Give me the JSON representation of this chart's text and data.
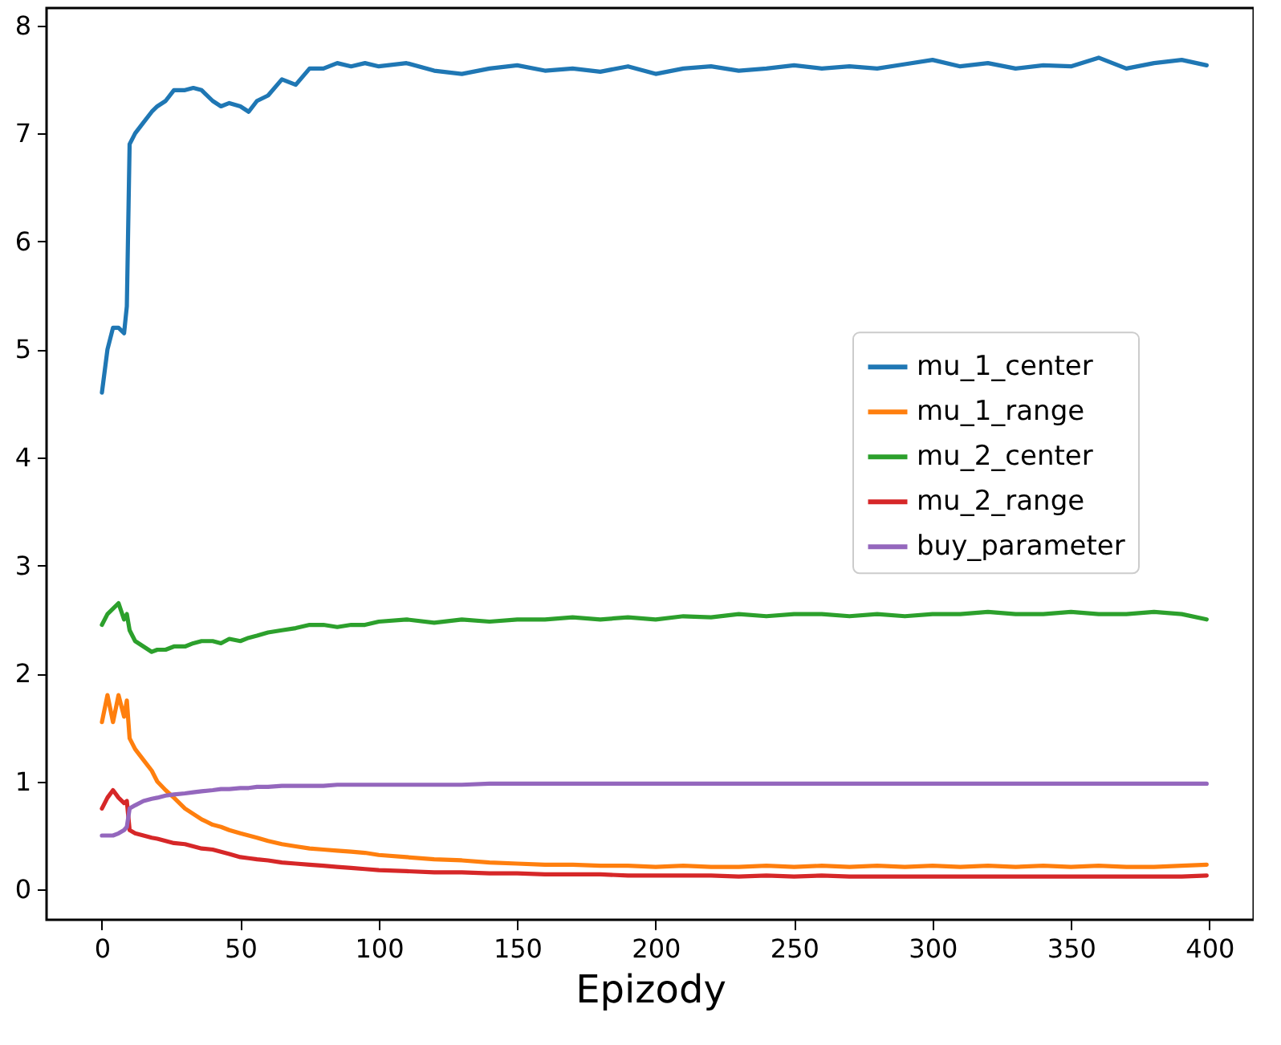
{
  "chart_data": {
    "type": "line",
    "xlabel": "Epizody",
    "x": [
      0,
      2,
      4,
      6,
      8,
      9,
      10,
      12,
      15,
      18,
      20,
      23,
      26,
      30,
      33,
      36,
      40,
      43,
      46,
      50,
      53,
      56,
      60,
      65,
      70,
      75,
      80,
      85,
      90,
      95,
      100,
      110,
      120,
      130,
      140,
      150,
      160,
      170,
      180,
      190,
      200,
      210,
      220,
      230,
      240,
      250,
      260,
      270,
      280,
      290,
      300,
      310,
      320,
      330,
      340,
      350,
      360,
      370,
      380,
      390,
      399
    ],
    "series": [
      {
        "name": "mu_1_center",
        "color": "#1f77b4",
        "values": [
          4.6,
          5.0,
          5.2,
          5.2,
          5.15,
          5.4,
          6.9,
          7.0,
          7.1,
          7.2,
          7.25,
          7.3,
          7.4,
          7.4,
          7.42,
          7.4,
          7.3,
          7.25,
          7.28,
          7.25,
          7.2,
          7.3,
          7.35,
          7.5,
          7.45,
          7.6,
          7.6,
          7.65,
          7.62,
          7.65,
          7.62,
          7.65,
          7.58,
          7.55,
          7.6,
          7.63,
          7.58,
          7.6,
          7.57,
          7.62,
          7.55,
          7.6,
          7.62,
          7.58,
          7.6,
          7.63,
          7.6,
          7.62,
          7.6,
          7.64,
          7.68,
          7.62,
          7.65,
          7.6,
          7.63,
          7.62,
          7.7,
          7.6,
          7.65,
          7.68,
          7.63
        ]
      },
      {
        "name": "mu_1_range",
        "color": "#ff7f0e",
        "values": [
          1.55,
          1.8,
          1.55,
          1.8,
          1.6,
          1.75,
          1.4,
          1.3,
          1.2,
          1.1,
          1.0,
          0.92,
          0.85,
          0.75,
          0.7,
          0.65,
          0.6,
          0.58,
          0.55,
          0.52,
          0.5,
          0.48,
          0.45,
          0.42,
          0.4,
          0.38,
          0.37,
          0.36,
          0.35,
          0.34,
          0.32,
          0.3,
          0.28,
          0.27,
          0.25,
          0.24,
          0.23,
          0.23,
          0.22,
          0.22,
          0.21,
          0.22,
          0.21,
          0.21,
          0.22,
          0.21,
          0.22,
          0.21,
          0.22,
          0.21,
          0.22,
          0.21,
          0.22,
          0.21,
          0.22,
          0.21,
          0.22,
          0.21,
          0.21,
          0.22,
          0.23
        ]
      },
      {
        "name": "mu_2_center",
        "color": "#2ca02c",
        "values": [
          2.45,
          2.55,
          2.6,
          2.65,
          2.5,
          2.55,
          2.4,
          2.3,
          2.25,
          2.2,
          2.22,
          2.22,
          2.25,
          2.25,
          2.28,
          2.3,
          2.3,
          2.28,
          2.32,
          2.3,
          2.33,
          2.35,
          2.38,
          2.4,
          2.42,
          2.45,
          2.45,
          2.43,
          2.45,
          2.45,
          2.48,
          2.5,
          2.47,
          2.5,
          2.48,
          2.5,
          2.5,
          2.52,
          2.5,
          2.52,
          2.5,
          2.53,
          2.52,
          2.55,
          2.53,
          2.55,
          2.55,
          2.53,
          2.55,
          2.53,
          2.55,
          2.55,
          2.57,
          2.55,
          2.55,
          2.57,
          2.55,
          2.55,
          2.57,
          2.55,
          2.5
        ]
      },
      {
        "name": "mu_2_range",
        "color": "#d62728",
        "values": [
          0.75,
          0.85,
          0.92,
          0.85,
          0.8,
          0.82,
          0.55,
          0.52,
          0.5,
          0.48,
          0.47,
          0.45,
          0.43,
          0.42,
          0.4,
          0.38,
          0.37,
          0.35,
          0.33,
          0.3,
          0.29,
          0.28,
          0.27,
          0.25,
          0.24,
          0.23,
          0.22,
          0.21,
          0.2,
          0.19,
          0.18,
          0.17,
          0.16,
          0.16,
          0.15,
          0.15,
          0.14,
          0.14,
          0.14,
          0.13,
          0.13,
          0.13,
          0.13,
          0.12,
          0.13,
          0.12,
          0.13,
          0.12,
          0.12,
          0.12,
          0.12,
          0.12,
          0.12,
          0.12,
          0.12,
          0.12,
          0.12,
          0.12,
          0.12,
          0.12,
          0.13
        ]
      },
      {
        "name": "buy_parameter",
        "color": "#9467bd",
        "values": [
          0.5,
          0.5,
          0.5,
          0.52,
          0.55,
          0.58,
          0.75,
          0.78,
          0.82,
          0.84,
          0.85,
          0.87,
          0.88,
          0.89,
          0.9,
          0.91,
          0.92,
          0.93,
          0.93,
          0.94,
          0.94,
          0.95,
          0.95,
          0.96,
          0.96,
          0.96,
          0.96,
          0.97,
          0.97,
          0.97,
          0.97,
          0.97,
          0.97,
          0.97,
          0.98,
          0.98,
          0.98,
          0.98,
          0.98,
          0.98,
          0.98,
          0.98,
          0.98,
          0.98,
          0.98,
          0.98,
          0.98,
          0.98,
          0.98,
          0.98,
          0.98,
          0.98,
          0.98,
          0.98,
          0.98,
          0.98,
          0.98,
          0.98,
          0.98,
          0.98,
          0.98
        ]
      }
    ],
    "xlim": [
      -20,
      416
    ],
    "ylim": [
      -0.28,
      8.16
    ],
    "xticks": [
      0,
      50,
      100,
      150,
      200,
      250,
      300,
      350,
      400
    ],
    "yticks": [
      0,
      1,
      2,
      3,
      4,
      5,
      6,
      7,
      8
    ],
    "legend": "right"
  }
}
